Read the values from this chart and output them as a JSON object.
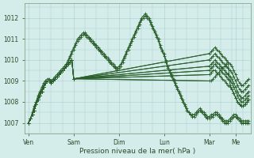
{
  "background_color": "#d4ecea",
  "grid_color": "#aacfcf",
  "line_color": "#2a5e2a",
  "ylabel": "Pression niveau de la mer( hPa )",
  "yticks": [
    1007,
    1008,
    1009,
    1010,
    1011,
    1012
  ],
  "ylim": [
    1006.5,
    1012.7
  ],
  "xtick_labels": [
    "Ven",
    "Sam",
    "Dim",
    "Lun",
    "Mar",
    "Me"
  ],
  "xtick_positions": [
    0,
    24,
    48,
    72,
    96,
    110
  ],
  "xlim": [
    -2,
    118
  ],
  "series": [
    {
      "x": [
        0,
        1,
        2,
        3,
        4,
        5,
        6,
        7,
        8,
        9,
        10,
        11,
        12,
        13,
        14,
        15,
        16,
        17,
        18,
        19,
        20,
        21,
        22,
        23,
        24,
        25,
        26,
        27,
        28,
        29,
        30,
        31,
        32,
        33,
        34,
        35,
        36,
        37,
        38,
        39,
        40,
        41,
        42,
        43,
        44,
        45,
        46,
        47,
        48,
        49,
        50,
        51,
        52,
        53,
        54,
        55,
        56,
        57,
        58,
        59,
        60,
        61,
        62,
        63,
        64,
        65,
        66,
        67,
        68,
        69,
        70,
        71,
        72,
        73,
        74,
        75,
        76,
        77,
        78,
        79,
        80,
        81,
        82,
        83,
        84,
        85,
        86,
        87,
        88,
        89,
        90,
        91,
        92,
        93,
        94,
        95,
        96,
        97,
        98,
        99,
        100,
        101,
        102,
        103,
        104,
        105,
        106,
        107,
        108,
        109,
        110,
        111,
        112,
        113,
        114,
        115,
        116,
        117
      ],
      "y": [
        1007.0,
        1007.2,
        1007.5,
        1007.8,
        1008.0,
        1008.3,
        1008.5,
        1008.7,
        1008.9,
        1009.0,
        1009.1,
        1009.1,
        1009.0,
        1009.0,
        1009.1,
        1009.2,
        1009.3,
        1009.4,
        1009.5,
        1009.6,
        1009.7,
        1009.9,
        1010.1,
        1010.3,
        1010.5,
        1010.7,
        1010.9,
        1011.0,
        1011.1,
        1011.2,
        1011.3,
        1011.2,
        1011.1,
        1011.0,
        1010.9,
        1010.8,
        1010.7,
        1010.6,
        1010.5,
        1010.4,
        1010.3,
        1010.2,
        1010.1,
        1010.0,
        1009.9,
        1009.8,
        1009.7,
        1009.6,
        1009.7,
        1009.8,
        1010.0,
        1010.2,
        1010.4,
        1010.6,
        1010.8,
        1011.0,
        1011.2,
        1011.4,
        1011.6,
        1011.8,
        1012.0,
        1012.1,
        1012.2,
        1012.1,
        1012.0,
        1011.8,
        1011.6,
        1011.4,
        1011.2,
        1011.0,
        1010.7,
        1010.5,
        1010.3,
        1010.0,
        1009.7,
        1009.5,
        1009.3,
        1009.1,
        1008.9,
        1008.7,
        1008.5,
        1008.3,
        1008.1,
        1007.9,
        1007.7,
        1007.5,
        1007.4,
        1007.3,
        1007.3,
        1007.4,
        1007.5,
        1007.6,
        1007.5,
        1007.4,
        1007.3,
        1007.2,
        1007.2,
        1007.3,
        1007.3,
        1007.4,
        1007.4,
        1007.3,
        1007.2,
        1007.1,
        1007.0,
        1007.0,
        1007.0,
        1007.1,
        1007.2,
        1007.3,
        1007.3,
        1007.2,
        1007.1,
        1007.0,
        1007.0,
        1007.0,
        1007.0,
        1007.0
      ]
    },
    {
      "x": [
        0,
        1,
        2,
        3,
        4,
        5,
        6,
        7,
        8,
        9,
        10,
        11,
        12,
        13,
        14,
        15,
        16,
        17,
        18,
        19,
        20,
        21,
        22,
        23,
        24,
        25,
        26,
        27,
        28,
        29,
        30,
        31,
        32,
        33,
        34,
        35,
        36,
        37,
        38,
        39,
        40,
        41,
        42,
        43,
        44,
        45,
        46,
        47,
        48,
        49,
        50,
        51,
        52,
        53,
        54,
        55,
        56,
        57,
        58,
        59,
        60,
        61,
        62,
        63,
        64,
        65,
        66,
        67,
        68,
        69,
        70,
        71,
        72,
        73,
        74,
        75,
        76,
        77,
        78,
        79,
        80,
        81,
        82,
        83,
        84,
        85,
        86,
        87,
        88,
        89,
        90,
        91,
        92,
        93,
        94,
        95,
        96,
        97,
        98,
        99,
        100,
        101,
        102,
        103,
        104,
        105,
        106,
        107,
        108,
        109,
        110,
        111,
        112,
        113,
        114,
        115,
        116,
        117
      ],
      "y": [
        1007.0,
        1007.2,
        1007.4,
        1007.7,
        1008.0,
        1008.2,
        1008.4,
        1008.6,
        1008.8,
        1008.9,
        1009.0,
        1009.0,
        1009.0,
        1009.1,
        1009.2,
        1009.3,
        1009.4,
        1009.5,
        1009.6,
        1009.7,
        1009.8,
        1010.0,
        1010.2,
        1010.4,
        1010.6,
        1010.8,
        1011.0,
        1011.1,
        1011.2,
        1011.3,
        1011.2,
        1011.1,
        1011.0,
        1010.9,
        1010.8,
        1010.7,
        1010.6,
        1010.5,
        1010.4,
        1010.3,
        1010.2,
        1010.1,
        1010.0,
        1009.9,
        1009.8,
        1009.7,
        1009.6,
        1009.5,
        1009.6,
        1009.7,
        1009.9,
        1010.1,
        1010.3,
        1010.5,
        1010.7,
        1010.9,
        1011.1,
        1011.3,
        1011.5,
        1011.7,
        1011.9,
        1012.0,
        1012.1,
        1012.0,
        1011.9,
        1011.7,
        1011.5,
        1011.3,
        1011.1,
        1010.9,
        1010.6,
        1010.4,
        1010.2,
        1009.9,
        1009.6,
        1009.4,
        1009.2,
        1009.0,
        1008.8,
        1008.6,
        1008.4,
        1008.2,
        1008.0,
        1007.8,
        1007.6,
        1007.5,
        1007.4,
        1007.4,
        1007.4,
        1007.5,
        1007.6,
        1007.7,
        1007.6,
        1007.5,
        1007.4,
        1007.3,
        1007.3,
        1007.4,
        1007.4,
        1007.5,
        1007.5,
        1007.4,
        1007.3,
        1007.2,
        1007.1,
        1007.1,
        1007.1,
        1007.2,
        1007.3,
        1007.4,
        1007.4,
        1007.3,
        1007.2,
        1007.1,
        1007.1,
        1007.1,
        1007.1,
        1007.1
      ]
    },
    {
      "x": [
        0,
        1,
        2,
        3,
        4,
        5,
        6,
        7,
        8,
        9,
        10,
        11,
        12,
        13,
        14,
        15,
        16,
        17,
        18,
        19,
        20,
        21,
        22,
        23,
        24,
        96,
        97,
        98,
        99,
        100,
        101,
        102,
        103,
        104,
        105,
        106,
        107,
        108,
        109,
        110,
        111,
        112,
        113,
        114,
        115,
        116,
        117
      ],
      "y": [
        1007.0,
        1007.2,
        1007.4,
        1007.6,
        1007.9,
        1008.1,
        1008.3,
        1008.5,
        1008.7,
        1008.9,
        1009.0,
        1009.0,
        1008.9,
        1009.0,
        1009.1,
        1009.2,
        1009.3,
        1009.4,
        1009.5,
        1009.6,
        1009.7,
        1009.8,
        1009.9,
        1010.0,
        1009.1,
        1009.0,
        1009.0,
        1009.1,
        1009.2,
        1009.3,
        1009.4,
        1009.5,
        1009.6,
        1009.7,
        1009.8,
        1009.9,
        1008.8,
        1008.6,
        1008.4,
        1008.2,
        1008.0,
        1007.9,
        1007.8,
        1007.8,
        1007.9,
        1008.0,
        1008.1
      ]
    },
    {
      "x": [
        0,
        1,
        2,
        3,
        4,
        5,
        6,
        7,
        8,
        9,
        10,
        11,
        12,
        13,
        14,
        15,
        16,
        17,
        18,
        19,
        20,
        21,
        22,
        23,
        24,
        96,
        97,
        98,
        99,
        100,
        101,
        102,
        103,
        104,
        105,
        106,
        107,
        108,
        109,
        110,
        111,
        112,
        113,
        114,
        115,
        116,
        117
      ],
      "y": [
        1007.0,
        1007.2,
        1007.4,
        1007.6,
        1007.9,
        1008.1,
        1008.3,
        1008.5,
        1008.7,
        1008.9,
        1009.0,
        1009.0,
        1008.9,
        1009.0,
        1009.1,
        1009.2,
        1009.3,
        1009.4,
        1009.5,
        1009.6,
        1009.7,
        1009.8,
        1009.9,
        1010.0,
        1009.1,
        1009.3,
        1009.4,
        1009.5,
        1009.5,
        1009.4,
        1009.3,
        1009.2,
        1009.1,
        1009.0,
        1008.9,
        1008.8,
        1008.7,
        1008.6,
        1008.4,
        1008.2,
        1008.0,
        1007.9,
        1007.8,
        1007.8,
        1007.9,
        1008.0,
        1008.1
      ]
    },
    {
      "x": [
        0,
        1,
        2,
        3,
        4,
        5,
        6,
        7,
        8,
        9,
        10,
        11,
        12,
        13,
        14,
        15,
        16,
        17,
        18,
        19,
        20,
        21,
        22,
        23,
        24,
        96,
        97,
        98,
        99,
        100,
        101,
        102,
        103,
        104,
        105,
        106,
        107,
        108,
        109,
        110,
        111,
        112,
        113,
        114,
        115,
        116,
        117
      ],
      "y": [
        1007.0,
        1007.2,
        1007.4,
        1007.6,
        1007.9,
        1008.1,
        1008.3,
        1008.5,
        1008.7,
        1008.9,
        1009.0,
        1009.0,
        1008.9,
        1009.0,
        1009.1,
        1009.2,
        1009.3,
        1009.4,
        1009.5,
        1009.6,
        1009.7,
        1009.8,
        1009.9,
        1010.0,
        1009.1,
        1009.5,
        1009.6,
        1009.7,
        1009.8,
        1009.7,
        1009.6,
        1009.5,
        1009.4,
        1009.3,
        1009.2,
        1009.1,
        1009.0,
        1008.9,
        1008.7,
        1008.5,
        1008.3,
        1008.1,
        1008.0,
        1008.0,
        1008.1,
        1008.2,
        1008.3
      ]
    },
    {
      "x": [
        0,
        1,
        2,
        3,
        4,
        5,
        6,
        7,
        8,
        9,
        10,
        11,
        12,
        13,
        14,
        15,
        16,
        17,
        18,
        19,
        20,
        21,
        22,
        23,
        24,
        96,
        97,
        98,
        99,
        100,
        101,
        102,
        103,
        104,
        105,
        106,
        107,
        108,
        109,
        110,
        111,
        112,
        113,
        114,
        115,
        116,
        117
      ],
      "y": [
        1007.0,
        1007.2,
        1007.4,
        1007.6,
        1007.9,
        1008.1,
        1008.3,
        1008.5,
        1008.7,
        1008.9,
        1009.0,
        1009.0,
        1008.9,
        1009.0,
        1009.1,
        1009.2,
        1009.3,
        1009.4,
        1009.5,
        1009.6,
        1009.7,
        1009.8,
        1009.9,
        1010.0,
        1009.1,
        1009.7,
        1009.8,
        1009.9,
        1010.0,
        1009.9,
        1009.8,
        1009.7,
        1009.6,
        1009.5,
        1009.4,
        1009.3,
        1009.2,
        1009.1,
        1008.9,
        1008.7,
        1008.5,
        1008.3,
        1008.2,
        1008.2,
        1008.3,
        1008.4,
        1008.5
      ]
    },
    {
      "x": [
        0,
        1,
        2,
        3,
        4,
        5,
        6,
        7,
        8,
        9,
        10,
        11,
        12,
        13,
        14,
        15,
        16,
        17,
        18,
        19,
        20,
        21,
        22,
        23,
        24,
        96,
        97,
        98,
        99,
        100,
        101,
        102,
        103,
        104,
        105,
        106,
        107,
        108,
        109,
        110,
        111,
        112,
        113,
        114,
        115,
        116,
        117
      ],
      "y": [
        1007.0,
        1007.2,
        1007.4,
        1007.6,
        1007.9,
        1008.1,
        1008.3,
        1008.5,
        1008.7,
        1008.9,
        1009.0,
        1009.0,
        1008.9,
        1009.0,
        1009.1,
        1009.2,
        1009.3,
        1009.4,
        1009.5,
        1009.6,
        1009.7,
        1009.8,
        1009.9,
        1010.0,
        1009.1,
        1010.0,
        1010.1,
        1010.2,
        1010.3,
        1010.2,
        1010.1,
        1010.0,
        1009.9,
        1009.8,
        1009.7,
        1009.6,
        1009.5,
        1009.4,
        1009.2,
        1009.0,
        1008.8,
        1008.6,
        1008.5,
        1008.5,
        1008.6,
        1008.7,
        1008.8
      ]
    },
    {
      "x": [
        0,
        1,
        2,
        3,
        4,
        5,
        6,
        7,
        8,
        9,
        10,
        11,
        12,
        13,
        14,
        15,
        16,
        17,
        18,
        19,
        20,
        21,
        22,
        23,
        24,
        96,
        97,
        98,
        99,
        100,
        101,
        102,
        103,
        104,
        105,
        106,
        107,
        108,
        109,
        110,
        111,
        112,
        113,
        114,
        115,
        116,
        117
      ],
      "y": [
        1007.0,
        1007.2,
        1007.4,
        1007.6,
        1007.9,
        1008.1,
        1008.3,
        1008.5,
        1008.7,
        1008.9,
        1009.0,
        1009.0,
        1008.9,
        1009.0,
        1009.1,
        1009.2,
        1009.3,
        1009.4,
        1009.5,
        1009.6,
        1009.7,
        1009.8,
        1009.9,
        1010.0,
        1009.1,
        1010.3,
        1010.4,
        1010.5,
        1010.6,
        1010.5,
        1010.4,
        1010.3,
        1010.2,
        1010.1,
        1010.0,
        1009.9,
        1009.8,
        1009.7,
        1009.5,
        1009.3,
        1009.1,
        1008.9,
        1008.8,
        1008.8,
        1008.9,
        1009.0,
        1009.1
      ]
    }
  ],
  "fan_lines": [
    {
      "x0": 24,
      "y0": 1009.1,
      "x1": 96,
      "y1": 1009.0
    },
    {
      "x0": 24,
      "y0": 1009.1,
      "x1": 96,
      "y1": 1009.3
    },
    {
      "x0": 24,
      "y0": 1009.1,
      "x1": 96,
      "y1": 1009.5
    },
    {
      "x0": 24,
      "y0": 1009.1,
      "x1": 96,
      "y1": 1009.7
    },
    {
      "x0": 24,
      "y0": 1009.1,
      "x1": 96,
      "y1": 1010.0
    },
    {
      "x0": 24,
      "y0": 1009.1,
      "x1": 96,
      "y1": 1010.3
    }
  ]
}
